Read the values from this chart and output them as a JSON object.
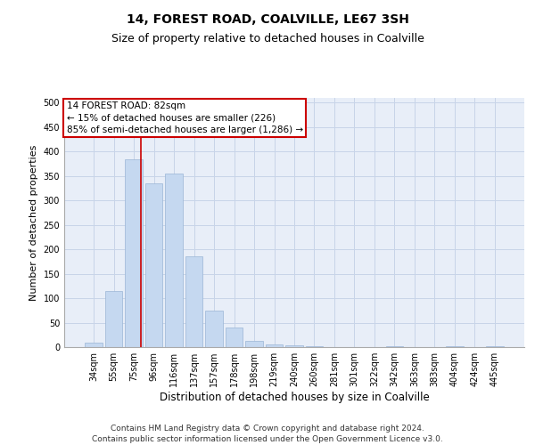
{
  "title": "14, FOREST ROAD, COALVILLE, LE67 3SH",
  "subtitle": "Size of property relative to detached houses in Coalville",
  "xlabel": "Distribution of detached houses by size in Coalville",
  "ylabel": "Number of detached properties",
  "categories": [
    "34sqm",
    "55sqm",
    "75sqm",
    "96sqm",
    "116sqm",
    "137sqm",
    "157sqm",
    "178sqm",
    "198sqm",
    "219sqm",
    "240sqm",
    "260sqm",
    "281sqm",
    "301sqm",
    "322sqm",
    "342sqm",
    "363sqm",
    "383sqm",
    "404sqm",
    "424sqm",
    "445sqm"
  ],
  "values": [
    10,
    115,
    385,
    335,
    355,
    185,
    75,
    40,
    12,
    6,
    3,
    1,
    0,
    0,
    0,
    2,
    0,
    0,
    2,
    0,
    2
  ],
  "bar_color": "#c5d8f0",
  "bar_edge_color": "#9ab5d5",
  "grid_color": "#c8d4e8",
  "background_color": "#e8eef8",
  "vline_color": "#cc0000",
  "annotation_text": "14 FOREST ROAD: 82sqm\n← 15% of detached houses are smaller (226)\n85% of semi-detached houses are larger (1,286) →",
  "annotation_box_color": "#cc0000",
  "ylim": [
    0,
    510
  ],
  "yticks": [
    0,
    50,
    100,
    150,
    200,
    250,
    300,
    350,
    400,
    450,
    500
  ],
  "footer": "Contains HM Land Registry data © Crown copyright and database right 2024.\nContains public sector information licensed under the Open Government Licence v3.0.",
  "title_fontsize": 10,
  "subtitle_fontsize": 9,
  "xlabel_fontsize": 8.5,
  "ylabel_fontsize": 8,
  "tick_fontsize": 7,
  "annotation_fontsize": 7.5,
  "footer_fontsize": 6.5
}
